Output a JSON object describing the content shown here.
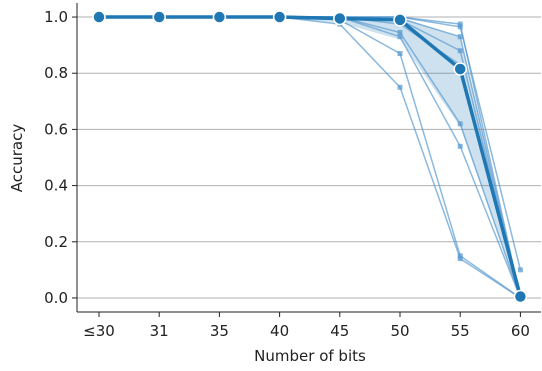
{
  "chart_data": {
    "type": "line",
    "xlabel": "Number of bits",
    "ylabel": "Accuracy",
    "categories": [
      "≤30",
      "31",
      "35",
      "40",
      "45",
      "50",
      "55",
      "60"
    ],
    "ylim": [
      -0.05,
      1.05
    ],
    "yticks": [
      0.0,
      0.2,
      0.4,
      0.6,
      0.8,
      1.0
    ],
    "ytick_labels": [
      "0.0",
      "0.2",
      "0.4",
      "0.6",
      "0.8",
      "1.0"
    ],
    "grid": "horizontal",
    "colors": {
      "main": "#1f77b4",
      "thin": "#5b9bd0",
      "band": "#1f77b4",
      "grid": "#b0b0b0",
      "axis": "#222222"
    },
    "mean": [
      1.0,
      1.0,
      1.0,
      1.0,
      0.995,
      0.99,
      0.815,
      0.005
    ],
    "band": {
      "lower": [
        0.997,
        0.997,
        0.997,
        0.997,
        0.98,
        0.92,
        0.61,
        0.003
      ],
      "upper": [
        1.0,
        1.0,
        1.0,
        1.0,
        1.0,
        1.0,
        0.93,
        0.012
      ]
    },
    "runs": [
      [
        1.0,
        1.0,
        1.0,
        1.0,
        0.975,
        0.75,
        0.14,
        0.0
      ],
      [
        1.0,
        1.0,
        1.0,
        1.0,
        0.99,
        0.87,
        0.15,
        0.0
      ],
      [
        1.0,
        1.0,
        1.0,
        1.0,
        1.0,
        0.93,
        0.54,
        0.0
      ],
      [
        1.0,
        1.0,
        1.0,
        1.0,
        1.0,
        0.945,
        0.62,
        0.0
      ],
      [
        1.0,
        1.0,
        1.0,
        1.0,
        1.0,
        0.975,
        0.83,
        0.0
      ],
      [
        1.0,
        1.0,
        1.0,
        1.0,
        1.0,
        0.99,
        0.88,
        0.0
      ],
      [
        1.0,
        1.0,
        1.0,
        1.0,
        1.0,
        0.995,
        0.93,
        0.0
      ],
      [
        1.0,
        1.0,
        1.0,
        1.0,
        1.0,
        1.0,
        0.965,
        0.1
      ],
      [
        1.0,
        1.0,
        1.0,
        1.0,
        1.0,
        1.0,
        0.975,
        0.0
      ]
    ]
  }
}
